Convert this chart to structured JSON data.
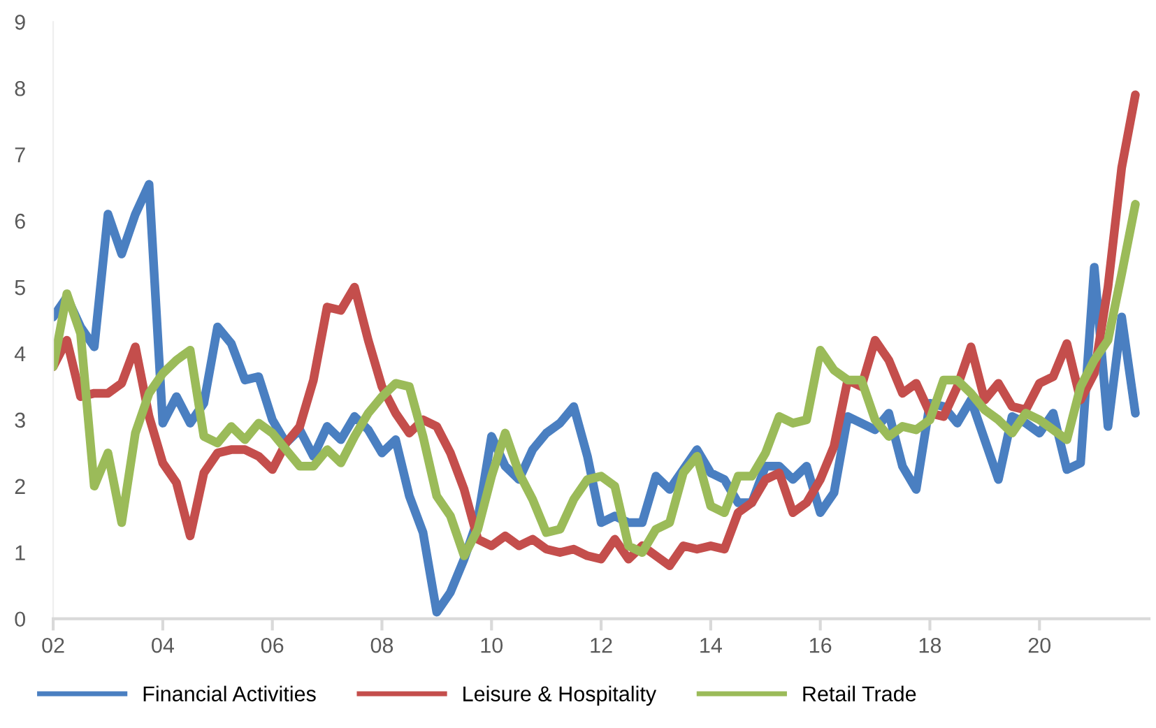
{
  "chart_data": {
    "type": "line",
    "x": [
      2002,
      2002.25,
      2002.5,
      2002.75,
      2003,
      2003.25,
      2003.5,
      2003.75,
      2004,
      2004.25,
      2004.5,
      2004.75,
      2005,
      2005.25,
      2005.5,
      2005.75,
      2006,
      2006.25,
      2006.5,
      2006.75,
      2007,
      2007.25,
      2007.5,
      2007.75,
      2008,
      2008.25,
      2008.5,
      2008.75,
      2009,
      2009.25,
      2009.5,
      2009.75,
      2010,
      2010.25,
      2010.5,
      2010.75,
      2011,
      2011.25,
      2011.5,
      2011.75,
      2012,
      2012.25,
      2012.5,
      2012.75,
      2013,
      2013.25,
      2013.5,
      2013.75,
      2014,
      2014.25,
      2014.5,
      2014.75,
      2015,
      2015.25,
      2015.5,
      2015.75,
      2016,
      2016.25,
      2016.5,
      2016.75,
      2017,
      2017.25,
      2017.5,
      2017.75,
      2018,
      2018.25,
      2018.5,
      2018.75,
      2019,
      2019.25,
      2019.5,
      2019.75,
      2020,
      2020.25,
      2020.5,
      2020.75,
      2021,
      2021.25,
      2021.5,
      2021.75
    ],
    "series": [
      {
        "name": "Financial Activities",
        "color": "#4a7fc1",
        "values": [
          4.55,
          4.85,
          4.4,
          4.1,
          6.1,
          5.5,
          6.1,
          6.55,
          2.95,
          3.35,
          2.95,
          3.25,
          4.4,
          4.15,
          3.6,
          3.65,
          3.0,
          2.65,
          2.85,
          2.45,
          2.9,
          2.7,
          3.05,
          2.85,
          2.5,
          2.7,
          1.85,
          1.3,
          0.1,
          0.4,
          0.9,
          1.5,
          2.75,
          2.3,
          2.1,
          2.55,
          2.8,
          2.95,
          3.2,
          2.45,
          1.45,
          1.55,
          1.45,
          1.45,
          2.15,
          1.95,
          2.25,
          2.55,
          2.2,
          2.1,
          1.75,
          1.75,
          2.3,
          2.3,
          2.1,
          2.3,
          1.6,
          1.9,
          3.05,
          2.95,
          2.85,
          3.1,
          2.3,
          1.95,
          3.25,
          3.2,
          2.95,
          3.3,
          2.7,
          2.1,
          3.05,
          2.95,
          2.8,
          3.1,
          2.25,
          2.35,
          5.3,
          2.9,
          4.55,
          3.1
        ]
      },
      {
        "name": "Leisure & Hospitality",
        "color": "#c44e4c",
        "values": [
          3.8,
          4.2,
          3.35,
          3.4,
          3.4,
          3.55,
          4.1,
          3.05,
          2.35,
          2.05,
          1.25,
          2.2,
          2.5,
          2.55,
          2.55,
          2.45,
          2.25,
          2.65,
          2.9,
          3.6,
          4.7,
          4.65,
          5.0,
          4.2,
          3.5,
          3.1,
          2.8,
          3.0,
          2.9,
          2.5,
          1.95,
          1.2,
          1.1,
          1.25,
          1.1,
          1.2,
          1.05,
          1.0,
          1.05,
          0.95,
          0.9,
          1.2,
          0.9,
          1.1,
          0.95,
          0.8,
          1.1,
          1.05,
          1.1,
          1.05,
          1.6,
          1.75,
          2.1,
          2.2,
          1.6,
          1.75,
          2.1,
          2.6,
          3.6,
          3.5,
          4.2,
          3.9,
          3.4,
          3.55,
          3.1,
          3.05,
          3.5,
          4.1,
          3.3,
          3.55,
          3.2,
          3.15,
          3.55,
          3.65,
          4.15,
          3.3,
          3.7,
          5.0,
          6.8,
          7.9
        ]
      },
      {
        "name": "Retail Trade",
        "color": "#9bbb59",
        "values": [
          3.8,
          4.9,
          4.3,
          2.0,
          2.5,
          1.45,
          2.8,
          3.4,
          3.7,
          3.9,
          4.05,
          2.75,
          2.65,
          2.9,
          2.7,
          2.95,
          2.8,
          2.55,
          2.3,
          2.3,
          2.55,
          2.35,
          2.75,
          3.1,
          3.35,
          3.55,
          3.5,
          2.75,
          1.85,
          1.55,
          0.95,
          1.35,
          2.15,
          2.8,
          2.2,
          1.8,
          1.3,
          1.35,
          1.8,
          2.1,
          2.15,
          2.0,
          1.1,
          1.0,
          1.35,
          1.45,
          2.2,
          2.45,
          1.7,
          1.6,
          2.15,
          2.15,
          2.5,
          3.05,
          2.95,
          3.0,
          4.05,
          3.75,
          3.6,
          3.6,
          3.0,
          2.75,
          2.9,
          2.85,
          3.0,
          3.6,
          3.6,
          3.4,
          3.15,
          3.0,
          2.8,
          3.1,
          3.0,
          2.85,
          2.7,
          3.5,
          3.9,
          4.2,
          5.2,
          6.25
        ]
      }
    ],
    "xlim": [
      2002,
      2022
    ],
    "xticks": [
      {
        "value": 2002,
        "label": "02"
      },
      {
        "value": 2004,
        "label": "04"
      },
      {
        "value": 2006,
        "label": "06"
      },
      {
        "value": 2008,
        "label": "08"
      },
      {
        "value": 2010,
        "label": "10"
      },
      {
        "value": 2012,
        "label": "12"
      },
      {
        "value": 2014,
        "label": "14"
      },
      {
        "value": 2016,
        "label": "16"
      },
      {
        "value": 2018,
        "label": "18"
      },
      {
        "value": 2020,
        "label": "20"
      }
    ],
    "ylim": [
      0,
      9
    ],
    "yticks": [
      0,
      1,
      2,
      3,
      4,
      5,
      6,
      7,
      8,
      9
    ],
    "grid": false,
    "legend": "bottom",
    "marker": "none",
    "line_style": "solid"
  }
}
